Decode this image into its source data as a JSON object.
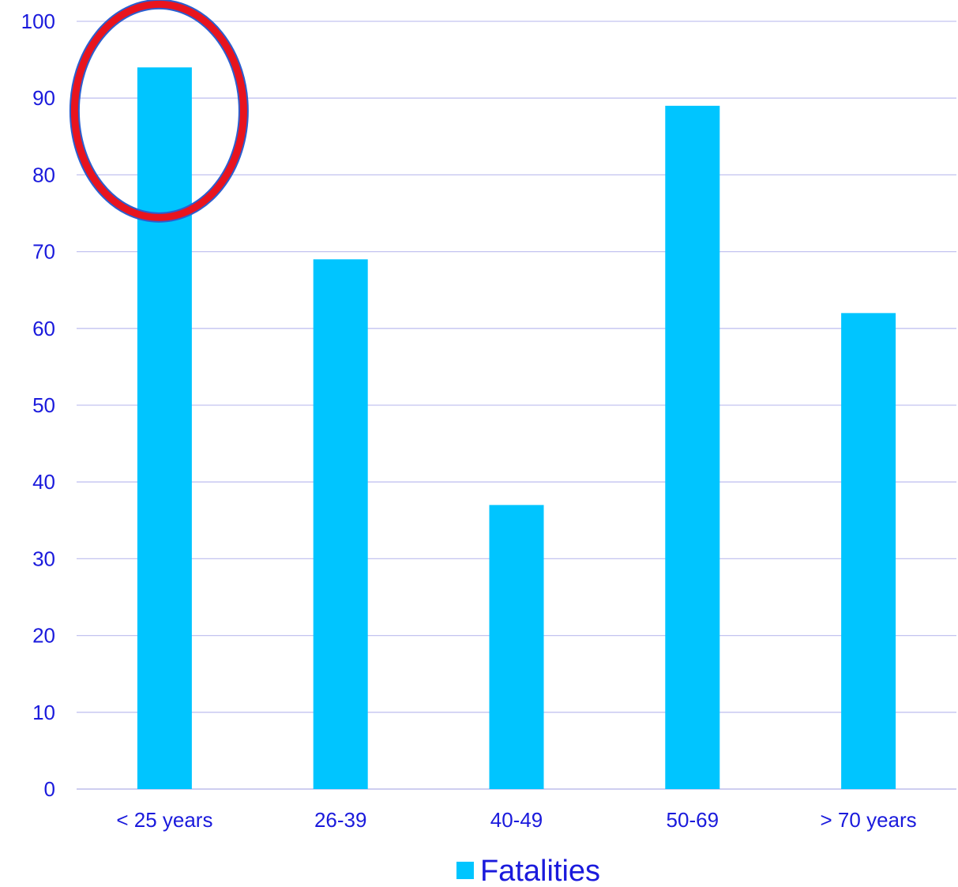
{
  "chart_data": {
    "type": "bar",
    "categories": [
      "< 25 years",
      "26-39",
      "40-49",
      "50-69",
      "> 70 years"
    ],
    "series": [
      {
        "name": "Fatalities",
        "values": [
          94,
          69,
          37,
          89,
          62
        ]
      }
    ],
    "ylim": [
      0,
      100
    ],
    "yticks": [
      0,
      10,
      20,
      30,
      40,
      50,
      60,
      70,
      80,
      90,
      100
    ],
    "grid": true,
    "legend_position": "bottom",
    "highlight_category": "< 25 years"
  },
  "colors": {
    "bar": "#00c5ff",
    "text": "#1a1adc",
    "grid": "#c3c3f0",
    "axis": "#b0b0e8",
    "highlight_ring": "#e8141e",
    "highlight_ring_outline": "#2a5fd0"
  }
}
